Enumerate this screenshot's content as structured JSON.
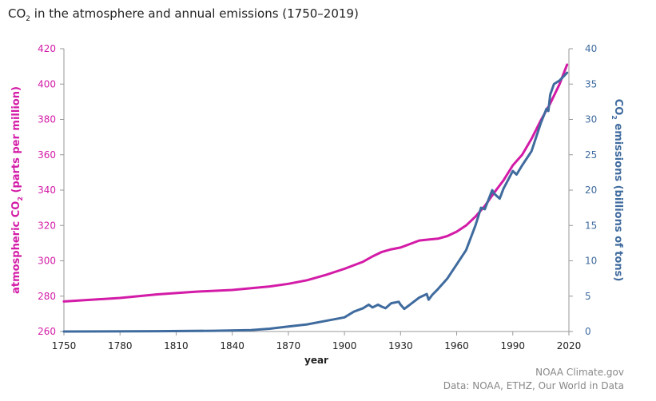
{
  "title": {
    "prefix": "CO",
    "sub": "2",
    "suffix": " in the atmosphere and annual emissions (1750–2019)"
  },
  "credits": {
    "line1": "NOAA Climate.gov",
    "line2": "Data: NOAA, ETHZ, Our World in Data"
  },
  "colors": {
    "co2_ppm": "#d31ba7",
    "emissions": "#3f6b9e",
    "axis": "#999999",
    "left_ticks": "#d31ba7",
    "right_ticks": "#3f6b9e"
  },
  "chart_data": {
    "type": "line",
    "xlabel": "year",
    "ylabel_left": {
      "prefix": "atmospheric CO",
      "sub": "2",
      "suffix": " (parts per million)"
    },
    "ylabel_right": {
      "prefix": "CO",
      "sub": "2",
      "suffix": " emissions (billions of tons)"
    },
    "xlim": [
      1750,
      2020
    ],
    "ylim_left": [
      260,
      420
    ],
    "ylim_right": [
      0,
      40
    ],
    "x_ticks": [
      "1750",
      "1780",
      "1810",
      "1840",
      "1870",
      "1900",
      "1930",
      "1960",
      "1990",
      "2020"
    ],
    "y_ticks_left": [
      "260",
      "280",
      "300",
      "320",
      "340",
      "360",
      "380",
      "400",
      "420"
    ],
    "y_ticks_right": [
      "0",
      "5",
      "10",
      "15",
      "20",
      "25",
      "30",
      "35",
      "40"
    ],
    "grid": false,
    "series": [
      {
        "axis": "left",
        "x": [
          1750,
          1780,
          1800,
          1820,
          1840,
          1860,
          1870,
          1880,
          1890,
          1900,
          1910,
          1915,
          1920,
          1925,
          1930,
          1935,
          1940,
          1945,
          1950,
          1955,
          1960,
          1965,
          1970,
          1975,
          1980,
          1985,
          1990,
          1995,
          2000,
          2005,
          2010,
          2015,
          2019
        ],
        "y": [
          277,
          279,
          281,
          282.5,
          283.5,
          285.5,
          287,
          289,
          292,
          295.5,
          299.5,
          302.5,
          305,
          306.5,
          307.5,
          309.5,
          311.5,
          312,
          312.5,
          314,
          316.5,
          320,
          325,
          331,
          338.5,
          345.5,
          354,
          360,
          369,
          379.5,
          389,
          400,
          411
        ]
      },
      {
        "axis": "right",
        "x": [
          1750,
          1800,
          1830,
          1850,
          1860,
          1870,
          1880,
          1890,
          1900,
          1905,
          1910,
          1913,
          1915,
          1918,
          1920,
          1922,
          1925,
          1929,
          1930,
          1932,
          1935,
          1940,
          1944,
          1945,
          1947,
          1950,
          1955,
          1960,
          1965,
          1970,
          1973,
          1975,
          1979,
          1980,
          1983,
          1985,
          1990,
          1992,
          1995,
          2000,
          2005,
          2008,
          2009,
          2010,
          2012,
          2015,
          2019
        ],
        "y": [
          0,
          0.05,
          0.1,
          0.2,
          0.4,
          0.7,
          1,
          1.5,
          2,
          2.8,
          3.3,
          3.8,
          3.4,
          3.8,
          3.5,
          3.3,
          4,
          4.2,
          3.8,
          3.2,
          3.8,
          4.8,
          5.3,
          4.5,
          5.2,
          6,
          7.5,
          9.5,
          11.5,
          15,
          17.5,
          17.3,
          20,
          19.5,
          18.8,
          20.2,
          22.7,
          22.2,
          23.5,
          25.5,
          29.5,
          31.5,
          31.2,
          33.5,
          35,
          35.5,
          36.6
        ]
      }
    ]
  }
}
